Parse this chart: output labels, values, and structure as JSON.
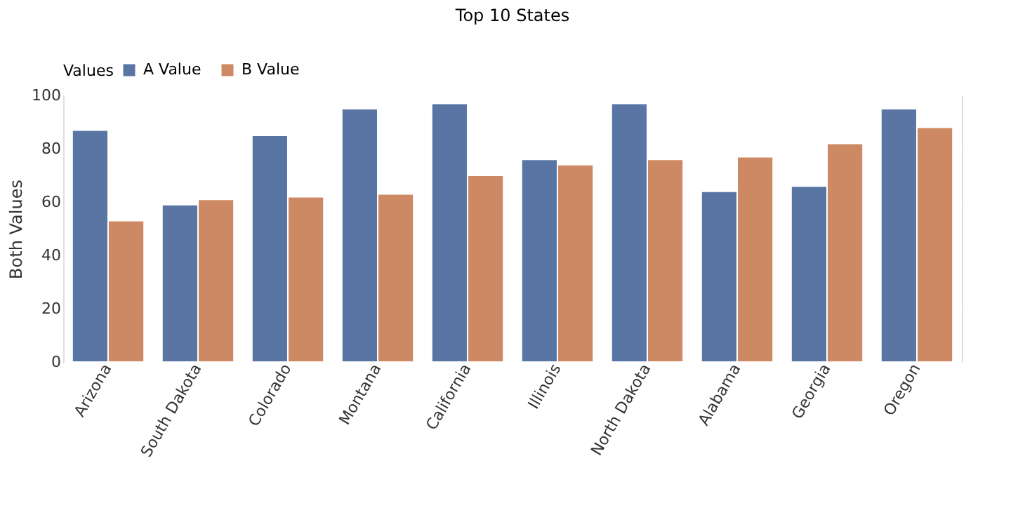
{
  "chart_data": {
    "type": "bar",
    "title": "Top 10 States",
    "ylabel": "Both Values",
    "legend_title": "Values",
    "categories": [
      "Arizona",
      "South Dakota",
      "Colorado",
      "Montana",
      "California",
      "Illinois",
      "North Dakota",
      "Alabama",
      "Georgia",
      "Oregon"
    ],
    "series": [
      {
        "name": "A Value",
        "color": "#5975a4",
        "values": [
          87,
          59,
          85,
          95,
          97,
          76,
          97,
          64,
          66,
          95
        ]
      },
      {
        "name": "B Value",
        "color": "#cc8963",
        "values": [
          53,
          61,
          62,
          63,
          70,
          74,
          76,
          77,
          82,
          88
        ]
      }
    ],
    "ylim": [
      0,
      100
    ],
    "yticks": [
      0,
      20,
      40,
      60,
      80,
      100
    ],
    "grid": "y",
    "legend": "top left"
  }
}
